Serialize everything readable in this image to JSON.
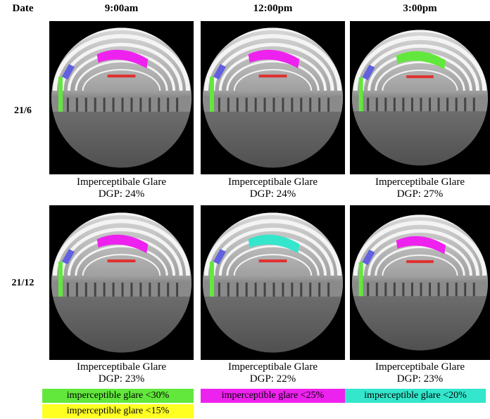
{
  "header": {
    "date": "Date",
    "times": [
      "9:00am",
      "12:00pm",
      "3:00pm"
    ]
  },
  "rows": [
    {
      "date": "21/6",
      "cells": [
        {
          "label": "Imperceptibale Glare",
          "dgp": "DGP: 24%"
        },
        {
          "label": "Imperceptibale Glare",
          "dgp": "DGP: 24%"
        },
        {
          "label": "Imperceptibale Glare",
          "dgp": "DGP: 27%"
        }
      ]
    },
    {
      "date": "21/12",
      "cells": [
        {
          "label": "Imperceptibale Glare",
          "dgp": "DGP: 23%"
        },
        {
          "label": "Imperceptibale Glare",
          "dgp": "DGP: 22%"
        },
        {
          "label": "Imperceptibale Glare",
          "dgp": "DGP: 23%"
        }
      ]
    }
  ],
  "legend": [
    {
      "text": "imperceptible glare <30%",
      "color": "#62e83c"
    },
    {
      "text": "imperceptible glare <25%",
      "color": "#ee22ee"
    },
    {
      "text": "imperceptible glare <20%",
      "color": "#33e6cc"
    },
    {
      "text": "imperceptible glare <15%",
      "color": "#ffff22"
    }
  ]
}
